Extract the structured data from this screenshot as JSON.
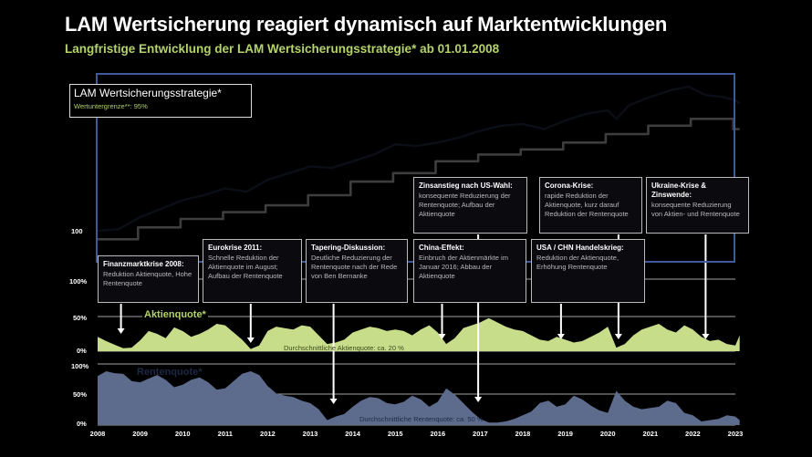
{
  "title": "LAM Wertsicherung reagiert dynamisch auf Marktentwicklungen",
  "subtitle": "Langfristige Entwicklung der LAM Wertsicherungsstrategie* ab 01.01.2008",
  "legend": {
    "title": "LAM Wertsicherungsstrategie*",
    "subtitle": "Wertuntergrenze**: 95%"
  },
  "colors": {
    "background": "#000000",
    "strategy_line": "#0b0e16",
    "floor_line": "#3e3e3e",
    "frame": "#3f5a9c",
    "aktien_fill": "#c8dd8a",
    "renten_fill": "#5d6b8d",
    "grid": "#ffffff",
    "accent_green": "#b5d36b"
  },
  "chart_data": [
    {
      "type": "line",
      "name": "performance",
      "ylabel": "",
      "yticks": [
        "100"
      ],
      "series": [
        {
          "name": "LAM Wertsicherungsstrategie*",
          "x": [
            2008.0,
            2008.5,
            2009.0,
            2009.5,
            2010.0,
            2010.5,
            2011.0,
            2011.5,
            2012.0,
            2012.5,
            2013.0,
            2013.5,
            2014.0,
            2014.5,
            2015.0,
            2015.5,
            2016.0,
            2016.5,
            2017.0,
            2017.5,
            2018.0,
            2018.5,
            2019.0,
            2019.5,
            2020.0,
            2020.2,
            2020.5,
            2021.0,
            2021.5,
            2021.9,
            2022.3,
            2022.7,
            2023.0,
            2023.1
          ],
          "values": [
            100,
            101,
            108,
            113,
            118,
            121,
            125,
            123,
            130,
            134,
            138,
            137,
            141,
            145,
            151,
            150,
            152,
            155,
            159,
            162,
            163,
            160,
            165,
            169,
            171,
            166,
            174,
            179,
            183,
            185,
            180,
            179,
            177,
            175
          ]
        },
        {
          "name": "Wertuntergrenze",
          "x": [
            2008.0,
            2008.95,
            2008.95,
            2009.95,
            2009.95,
            2010.95,
            2010.95,
            2011.95,
            2011.95,
            2012.95,
            2012.95,
            2013.95,
            2013.95,
            2014.95,
            2014.95,
            2015.95,
            2015.95,
            2016.95,
            2016.95,
            2017.95,
            2017.95,
            2018.95,
            2018.95,
            2019.95,
            2019.95,
            2020.95,
            2020.95,
            2021.95,
            2021.95,
            2022.95,
            2022.95,
            2023.1
          ],
          "values": [
            95,
            95,
            102,
            102,
            107,
            107,
            111,
            111,
            115,
            115,
            121,
            121,
            129,
            129,
            134,
            134,
            141,
            141,
            145,
            145,
            148,
            148,
            152,
            152,
            157,
            157,
            162,
            162,
            166,
            166,
            160,
            160
          ]
        }
      ]
    },
    {
      "type": "area",
      "name": "Aktienquote",
      "label": "Aktienquote*",
      "yticks": [
        "100%",
        "50%",
        "0%"
      ],
      "ylim": [
        0,
        100
      ],
      "average_label": "Durchschnittliche Aktienquote: ca. 20 %",
      "x": [
        2008.0,
        2008.2,
        2008.4,
        2008.6,
        2008.8,
        2009.0,
        2009.2,
        2009.4,
        2009.6,
        2009.8,
        2010.0,
        2010.2,
        2010.4,
        2010.6,
        2010.8,
        2011.0,
        2011.2,
        2011.4,
        2011.6,
        2011.8,
        2012.0,
        2012.2,
        2012.4,
        2012.6,
        2012.8,
        2013.0,
        2013.2,
        2013.4,
        2013.6,
        2013.8,
        2014.0,
        2014.2,
        2014.4,
        2014.6,
        2014.8,
        2015.0,
        2015.2,
        2015.4,
        2015.6,
        2015.8,
        2016.0,
        2016.2,
        2016.4,
        2016.6,
        2016.8,
        2017.0,
        2017.2,
        2017.4,
        2017.6,
        2017.8,
        2018.0,
        2018.2,
        2018.4,
        2018.6,
        2018.8,
        2019.0,
        2019.2,
        2019.4,
        2019.6,
        2019.8,
        2020.0,
        2020.2,
        2020.4,
        2020.6,
        2020.8,
        2021.0,
        2021.2,
        2021.4,
        2021.6,
        2021.8,
        2022.0,
        2022.2,
        2022.4,
        2022.6,
        2022.8,
        2023.0,
        2023.1
      ],
      "values": [
        20,
        14,
        9,
        4,
        5,
        15,
        28,
        24,
        18,
        33,
        28,
        20,
        24,
        30,
        38,
        36,
        26,
        16,
        3,
        8,
        28,
        34,
        32,
        30,
        36,
        34,
        22,
        10,
        12,
        16,
        26,
        30,
        34,
        32,
        28,
        30,
        28,
        22,
        30,
        36,
        26,
        10,
        18,
        32,
        36,
        40,
        46,
        40,
        34,
        30,
        28,
        22,
        16,
        14,
        20,
        16,
        12,
        14,
        20,
        26,
        34,
        5,
        10,
        22,
        30,
        34,
        38,
        30,
        26,
        36,
        30,
        20,
        14,
        16,
        10,
        8,
        22
      ]
    },
    {
      "type": "area",
      "name": "Rentenquote",
      "label": "Rentenquote*",
      "yticks": [
        "100%",
        "50%",
        "0%"
      ],
      "ylim": [
        0,
        100
      ],
      "average_label": "Durchschnittliche Rentenquote: ca. 50 %",
      "x": [
        2008.0,
        2008.2,
        2008.4,
        2008.6,
        2008.8,
        2009.0,
        2009.2,
        2009.4,
        2009.6,
        2009.8,
        2010.0,
        2010.2,
        2010.4,
        2010.6,
        2010.8,
        2011.0,
        2011.2,
        2011.4,
        2011.6,
        2011.8,
        2012.0,
        2012.2,
        2012.4,
        2012.6,
        2012.8,
        2013.0,
        2013.2,
        2013.4,
        2013.6,
        2013.8,
        2014.0,
        2014.2,
        2014.4,
        2014.6,
        2014.8,
        2015.0,
        2015.2,
        2015.4,
        2015.6,
        2015.8,
        2016.0,
        2016.2,
        2016.4,
        2016.6,
        2016.8,
        2017.0,
        2017.2,
        2017.4,
        2017.6,
        2017.8,
        2018.0,
        2018.2,
        2018.4,
        2018.6,
        2018.8,
        2019.0,
        2019.2,
        2019.4,
        2019.6,
        2019.8,
        2020.0,
        2020.2,
        2020.4,
        2020.6,
        2020.8,
        2021.0,
        2021.2,
        2021.4,
        2021.6,
        2021.8,
        2022.0,
        2022.2,
        2022.4,
        2022.6,
        2022.8,
        2023.0,
        2023.1
      ],
      "values": [
        80,
        88,
        85,
        84,
        72,
        70,
        76,
        82,
        74,
        62,
        66,
        74,
        78,
        70,
        58,
        60,
        72,
        84,
        88,
        82,
        64,
        52,
        48,
        46,
        40,
        36,
        26,
        8,
        14,
        18,
        30,
        40,
        46,
        44,
        36,
        34,
        38,
        48,
        42,
        30,
        38,
        60,
        50,
        36,
        22,
        10,
        4,
        4,
        6,
        10,
        16,
        22,
        36,
        40,
        30,
        34,
        48,
        42,
        32,
        24,
        20,
        56,
        40,
        30,
        26,
        28,
        30,
        40,
        36,
        20,
        16,
        6,
        8,
        10,
        16,
        14,
        8
      ]
    }
  ],
  "x_axis": {
    "labels": [
      "2008",
      "2009",
      "2010",
      "2011",
      "2012",
      "2013",
      "2014",
      "2015",
      "2016",
      "2017",
      "2018",
      "2019",
      "2020",
      "2021",
      "2022",
      "2023"
    ]
  },
  "annotations": [
    {
      "id": "finanzmarktkrise",
      "title": "Finanzmarktkrise 2008:",
      "body": "Reduktion Aktienquote, Hohe Rentenquote",
      "arrow_year": 2008.55
    },
    {
      "id": "eurokrise",
      "title": "Eurokrise 2011:",
      "body": "Schnelle Reduktion der Aktienquote im August; Aufbau der Rentenquote",
      "arrow_year": 2011.6
    },
    {
      "id": "tapering",
      "title": "Tapering-Diskussion:",
      "body": "Deutliche Reduzierung der Rentenquote nach der Rede von Ben Bernanke",
      "arrow_year": 2013.55
    },
    {
      "id": "china",
      "title": "China-Effekt:",
      "body": "Einbruch der Aktienmärkte im Januar 2016; Abbau der Aktienquote",
      "arrow_year": 2016.1
    },
    {
      "id": "uswahl",
      "title": "Zinsanstieg nach US-Wahl:",
      "body": "konsequente Reduzierung der Rentenquote; Aufbau der Aktienquote",
      "arrow_year": 2016.95
    },
    {
      "id": "usa-chn",
      "title": "USA / CHN Handelskrieg:",
      "body": "Reduktion der Aktienquote, Erhöhung Rentenquote",
      "arrow_year": 2018.9
    },
    {
      "id": "corona",
      "title": "Corona-Krise:",
      "body": "rapide Reduktion der Aktienquote, kurz darauf Reduktion der Rentenquote",
      "arrow_year": 2020.25
    },
    {
      "id": "ukraine",
      "title": "Ukraine-Krise & Zinswende:",
      "body": "konsequente Reduzierung von Aktien- und Rentenquote",
      "arrow_year": 2022.3
    }
  ]
}
